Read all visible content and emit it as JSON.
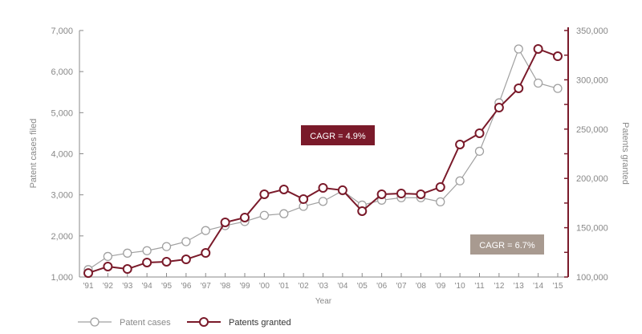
{
  "chart_data": {
    "type": "line",
    "xlabel": "Year",
    "ylabel_left": "Patent cases filed",
    "ylabel_right": "Patents granted",
    "categories": [
      "'91",
      "'92",
      "'93",
      "'94",
      "'95",
      "'96",
      "'97",
      "'98",
      "'99",
      "'00",
      "'01",
      "'02",
      "'03",
      "'04",
      "'05",
      "'06",
      "'07",
      "'08",
      "'09",
      "'10",
      "'11",
      "'12",
      "'13",
      "'14",
      "'15"
    ],
    "ylim_left": [
      1000,
      7000
    ],
    "yticks_left": [
      "1,000",
      "2,000",
      "3,000",
      "4,000",
      "5,000",
      "6,000",
      "7,000"
    ],
    "ylim_right": [
      100000,
      350000
    ],
    "yticks_right": [
      "100,000",
      "150,000",
      "200,000",
      "250,000",
      "300,000",
      "350,000"
    ],
    "series": [
      {
        "name": "Patent cases",
        "axis": "left",
        "color": "#a0a0a0",
        "values": [
          1180,
          1500,
          1580,
          1640,
          1740,
          1860,
          2130,
          2250,
          2350,
          2500,
          2540,
          2720,
          2840,
          3100,
          2750,
          2870,
          2930,
          2930,
          2830,
          3340,
          4060,
          5240,
          6550,
          5720,
          5590
        ]
      },
      {
        "name": "Patents granted",
        "axis": "right",
        "color": "#7a1a2a",
        "values": [
          104000,
          110600,
          108100,
          114700,
          115500,
          117900,
          124400,
          155400,
          160300,
          183900,
          188800,
          179000,
          190400,
          188000,
          166800,
          183900,
          184700,
          183900,
          191200,
          234400,
          245800,
          271800,
          291400,
          331300,
          323900
        ]
      }
    ],
    "annotations": [
      {
        "text": "CAGR = 4.9%",
        "color": "#7a1a2a"
      },
      {
        "text": "CAGR = 6.7%",
        "color": "#a89a90"
      }
    ],
    "legend": "bottom-left"
  }
}
